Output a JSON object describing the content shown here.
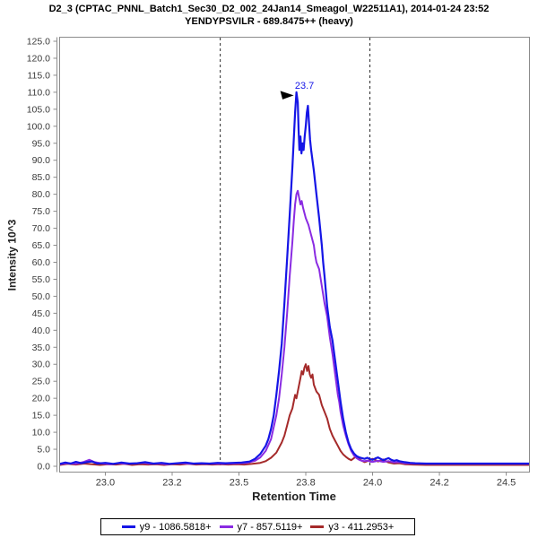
{
  "header": {
    "title_line1": "D2_3 (CPTAC_PNNL_Batch1_Sec30_D2_002_24Jan14_Smeagol_W22511A1), 2014-01-24 23:52",
    "title_line2": "YENDYPSVILR - 689.8475++ (heavy)"
  },
  "colors": {
    "axis": "#8c8c8c",
    "tick_label": "#3a3a3a",
    "boundary_line": "#2a2a2a",
    "annotation_arrow": "#000000"
  },
  "chart_data": {
    "type": "line",
    "title": "D2_3 (CPTAC_PNNL_Batch1_Sec30_D2_002_24Jan14_Smeagol_W22511A1), 2014-01-24 23:52",
    "subtitle": "YENDYPSVILR - 689.8475++ (heavy)",
    "xlabel": "Retention Time",
    "ylabel": "Intensity 10^3",
    "xlim": [
      22.829,
      24.587
    ],
    "ylim": [
      0,
      125
    ],
    "grid": false,
    "legend_position": "bottom",
    "x_ticks": [
      {
        "value": 23.0,
        "label": "23.0"
      },
      {
        "value": 23.25,
        "label": "23.2"
      },
      {
        "value": 23.5,
        "label": "23.5"
      },
      {
        "value": 23.75,
        "label": "23.8"
      },
      {
        "value": 24.0,
        "label": "24.0"
      },
      {
        "value": 24.25,
        "label": "24.2"
      },
      {
        "value": 24.5,
        "label": "24.5"
      }
    ],
    "y_tick_values": [
      0,
      5,
      10,
      15,
      20,
      25,
      30,
      35,
      40,
      45,
      50,
      55,
      60,
      65,
      70,
      75,
      80,
      85,
      90,
      95,
      100,
      105,
      110,
      115,
      120,
      125
    ],
    "peak_boundaries": [
      23.43,
      23.99
    ],
    "peak_annotation": {
      "label": "23.7",
      "x": 23.715,
      "y": 110
    },
    "series": [
      {
        "name": "y9 - 1086.5818+",
        "color": "#1515e6",
        "points": [
          [
            22.83,
            0.7
          ],
          [
            22.85,
            1.1
          ],
          [
            22.87,
            0.8
          ],
          [
            22.89,
            1.3
          ],
          [
            22.91,
            0.9
          ],
          [
            22.93,
            1.2
          ],
          [
            22.95,
            1.4
          ],
          [
            22.97,
            0.8
          ],
          [
            23.0,
            1.0
          ],
          [
            23.03,
            0.7
          ],
          [
            23.06,
            1.1
          ],
          [
            23.09,
            0.8
          ],
          [
            23.12,
            0.9
          ],
          [
            23.15,
            1.2
          ],
          [
            23.18,
            0.8
          ],
          [
            23.21,
            1.0
          ],
          [
            23.24,
            0.7
          ],
          [
            23.27,
            0.9
          ],
          [
            23.3,
            1.1
          ],
          [
            23.33,
            0.8
          ],
          [
            23.36,
            0.9
          ],
          [
            23.39,
            0.8
          ],
          [
            23.42,
            1.0
          ],
          [
            23.45,
            0.9
          ],
          [
            23.48,
            1.0
          ],
          [
            23.51,
            1.1
          ],
          [
            23.54,
            1.4
          ],
          [
            23.56,
            2.2
          ],
          [
            23.58,
            3.6
          ],
          [
            23.6,
            6
          ],
          [
            23.61,
            8
          ],
          [
            23.62,
            11
          ],
          [
            23.63,
            15
          ],
          [
            23.64,
            21
          ],
          [
            23.65,
            28
          ],
          [
            23.66,
            36
          ],
          [
            23.67,
            48
          ],
          [
            23.68,
            61
          ],
          [
            23.69,
            74
          ],
          [
            23.7,
            88
          ],
          [
            23.705,
            96
          ],
          [
            23.71,
            104
          ],
          [
            23.715,
            110
          ],
          [
            23.72,
            107
          ],
          [
            23.723,
            99
          ],
          [
            23.726,
            93
          ],
          [
            23.73,
            97
          ],
          [
            23.734,
            92
          ],
          [
            23.738,
            95
          ],
          [
            23.742,
            93
          ],
          [
            23.746,
            97
          ],
          [
            23.75,
            100
          ],
          [
            23.754,
            104
          ],
          [
            23.758,
            106
          ],
          [
            23.762,
            101
          ],
          [
            23.766,
            96
          ],
          [
            23.77,
            93
          ],
          [
            23.78,
            87
          ],
          [
            23.79,
            80
          ],
          [
            23.8,
            73
          ],
          [
            23.81,
            65
          ],
          [
            23.815,
            60
          ],
          [
            23.82,
            56
          ],
          [
            23.83,
            47
          ],
          [
            23.84,
            41
          ],
          [
            23.85,
            37
          ],
          [
            23.855,
            34
          ],
          [
            23.86,
            31
          ],
          [
            23.87,
            25
          ],
          [
            23.88,
            19
          ],
          [
            23.89,
            14
          ],
          [
            23.9,
            10
          ],
          [
            23.91,
            7
          ],
          [
            23.92,
            5
          ],
          [
            23.93,
            3.8
          ],
          [
            23.94,
            3.0
          ],
          [
            23.95,
            2.6
          ],
          [
            23.96,
            2.4
          ],
          [
            23.97,
            2.2
          ],
          [
            23.98,
            2.5
          ],
          [
            23.99,
            2.1
          ],
          [
            24.0,
            1.9
          ],
          [
            24.01,
            2.3
          ],
          [
            24.02,
            2.6
          ],
          [
            24.03,
            2.2
          ],
          [
            24.04,
            1.8
          ],
          [
            24.05,
            2.1
          ],
          [
            24.06,
            2.4
          ],
          [
            24.07,
            1.9
          ],
          [
            24.08,
            1.6
          ],
          [
            24.09,
            1.8
          ],
          [
            24.1,
            1.5
          ],
          [
            24.12,
            1.2
          ],
          [
            24.14,
            1.0
          ],
          [
            24.16,
            0.9
          ],
          [
            24.2,
            0.8
          ],
          [
            24.25,
            0.8
          ],
          [
            24.3,
            0.8
          ],
          [
            24.35,
            0.8
          ],
          [
            24.4,
            0.8
          ],
          [
            24.45,
            0.8
          ],
          [
            24.5,
            0.8
          ],
          [
            24.55,
            0.8
          ],
          [
            24.59,
            0.8
          ]
        ]
      },
      {
        "name": "y7 - 857.5119+",
        "color": "#8a2be2",
        "points": [
          [
            22.83,
            0.6
          ],
          [
            22.86,
            0.9
          ],
          [
            22.89,
            0.7
          ],
          [
            22.92,
            1.3
          ],
          [
            22.94,
            1.9
          ],
          [
            22.96,
            1.2
          ],
          [
            22.99,
            0.8
          ],
          [
            23.02,
            0.6
          ],
          [
            23.05,
            0.9
          ],
          [
            23.08,
            0.7
          ],
          [
            23.11,
            0.8
          ],
          [
            23.14,
            1.0
          ],
          [
            23.17,
            0.7
          ],
          [
            23.2,
            0.8
          ],
          [
            23.23,
            0.6
          ],
          [
            23.26,
            0.8
          ],
          [
            23.29,
            0.9
          ],
          [
            23.32,
            0.7
          ],
          [
            23.35,
            0.8
          ],
          [
            23.38,
            0.7
          ],
          [
            23.41,
            0.8
          ],
          [
            23.44,
            0.7
          ],
          [
            23.47,
            0.8
          ],
          [
            23.5,
            0.9
          ],
          [
            23.53,
            1.0
          ],
          [
            23.56,
            1.6
          ],
          [
            23.58,
            2.6
          ],
          [
            23.6,
            4.5
          ],
          [
            23.62,
            8
          ],
          [
            23.64,
            15
          ],
          [
            23.65,
            20
          ],
          [
            23.66,
            27
          ],
          [
            23.67,
            35
          ],
          [
            23.68,
            45
          ],
          [
            23.69,
            56
          ],
          [
            23.7,
            66
          ],
          [
            23.705,
            72
          ],
          [
            23.71,
            77
          ],
          [
            23.715,
            80
          ],
          [
            23.72,
            81
          ],
          [
            23.725,
            79
          ],
          [
            23.73,
            77
          ],
          [
            23.735,
            78
          ],
          [
            23.74,
            76
          ],
          [
            23.75,
            73
          ],
          [
            23.76,
            71
          ],
          [
            23.77,
            68
          ],
          [
            23.78,
            65
          ],
          [
            23.785,
            62
          ],
          [
            23.79,
            60
          ],
          [
            23.8,
            58
          ],
          [
            23.81,
            53
          ],
          [
            23.82,
            48
          ],
          [
            23.825,
            46
          ],
          [
            23.83,
            44
          ],
          [
            23.84,
            38
          ],
          [
            23.85,
            33
          ],
          [
            23.855,
            30
          ],
          [
            23.86,
            27
          ],
          [
            23.87,
            21
          ],
          [
            23.875,
            19
          ],
          [
            23.88,
            16
          ],
          [
            23.89,
            12
          ],
          [
            23.9,
            9
          ],
          [
            23.91,
            6.5
          ],
          [
            23.92,
            4.5
          ],
          [
            23.93,
            3.2
          ],
          [
            23.94,
            2.4
          ],
          [
            23.95,
            1.9
          ],
          [
            23.96,
            1.6
          ],
          [
            23.97,
            1.5
          ],
          [
            23.98,
            1.7
          ],
          [
            23.99,
            1.4
          ],
          [
            24.0,
            1.3
          ],
          [
            24.02,
            1.6
          ],
          [
            24.04,
            1.3
          ],
          [
            24.06,
            1.5
          ],
          [
            24.08,
            1.1
          ],
          [
            24.1,
            1.2
          ],
          [
            24.12,
            0.9
          ],
          [
            24.15,
            0.8
          ],
          [
            24.2,
            0.7
          ],
          [
            24.25,
            0.7
          ],
          [
            24.3,
            0.7
          ],
          [
            24.4,
            0.7
          ],
          [
            24.5,
            0.7
          ],
          [
            24.59,
            0.7
          ]
        ]
      },
      {
        "name": "y3 - 411.2953+",
        "color": "#a52a2a",
        "points": [
          [
            22.83,
            0.4
          ],
          [
            22.86,
            0.7
          ],
          [
            22.89,
            0.5
          ],
          [
            22.92,
            0.8
          ],
          [
            22.95,
            0.6
          ],
          [
            22.98,
            0.4
          ],
          [
            23.01,
            0.6
          ],
          [
            23.04,
            0.5
          ],
          [
            23.07,
            0.7
          ],
          [
            23.1,
            0.4
          ],
          [
            23.13,
            0.6
          ],
          [
            23.16,
            0.5
          ],
          [
            23.19,
            0.6
          ],
          [
            23.22,
            0.4
          ],
          [
            23.25,
            0.6
          ],
          [
            23.28,
            0.5
          ],
          [
            23.31,
            0.7
          ],
          [
            23.34,
            0.5
          ],
          [
            23.37,
            0.6
          ],
          [
            23.4,
            0.5
          ],
          [
            23.43,
            0.6
          ],
          [
            23.46,
            0.5
          ],
          [
            23.49,
            0.6
          ],
          [
            23.52,
            0.5
          ],
          [
            23.55,
            0.7
          ],
          [
            23.58,
            1.0
          ],
          [
            23.6,
            1.5
          ],
          [
            23.62,
            2.5
          ],
          [
            23.64,
            4
          ],
          [
            23.66,
            7
          ],
          [
            23.67,
            9
          ],
          [
            23.68,
            12
          ],
          [
            23.69,
            15
          ],
          [
            23.7,
            17
          ],
          [
            23.705,
            19
          ],
          [
            23.71,
            21
          ],
          [
            23.715,
            20
          ],
          [
            23.72,
            22
          ],
          [
            23.725,
            24
          ],
          [
            23.73,
            26
          ],
          [
            23.735,
            28
          ],
          [
            23.74,
            27
          ],
          [
            23.745,
            29
          ],
          [
            23.75,
            30
          ],
          [
            23.755,
            28
          ],
          [
            23.76,
            29.5
          ],
          [
            23.765,
            27
          ],
          [
            23.77,
            26
          ],
          [
            23.775,
            27
          ],
          [
            23.78,
            24
          ],
          [
            23.79,
            22
          ],
          [
            23.8,
            21
          ],
          [
            23.81,
            18
          ],
          [
            23.82,
            16
          ],
          [
            23.83,
            14
          ],
          [
            23.84,
            11
          ],
          [
            23.85,
            9
          ],
          [
            23.86,
            7.5
          ],
          [
            23.87,
            6
          ],
          [
            23.88,
            4.5
          ],
          [
            23.89,
            3.5
          ],
          [
            23.9,
            2.8
          ],
          [
            23.91,
            2.2
          ],
          [
            23.92,
            1.8
          ],
          [
            23.93,
            2.4
          ],
          [
            23.94,
            3.0
          ],
          [
            23.95,
            2.2
          ],
          [
            23.96,
            1.6
          ],
          [
            23.97,
            1.2
          ],
          [
            23.98,
            1.5
          ],
          [
            23.99,
            1.8
          ],
          [
            24.0,
            2.2
          ],
          [
            24.01,
            1.9
          ],
          [
            24.02,
            1.4
          ],
          [
            24.03,
            1.7
          ],
          [
            24.04,
            2.0
          ],
          [
            24.05,
            1.5
          ],
          [
            24.06,
            1.1
          ],
          [
            24.08,
            0.8
          ],
          [
            24.1,
            0.9
          ],
          [
            24.12,
            0.6
          ],
          [
            24.15,
            0.5
          ],
          [
            24.2,
            0.4
          ],
          [
            24.3,
            0.4
          ],
          [
            24.4,
            0.4
          ],
          [
            24.5,
            0.4
          ],
          [
            24.59,
            0.4
          ]
        ]
      }
    ]
  }
}
